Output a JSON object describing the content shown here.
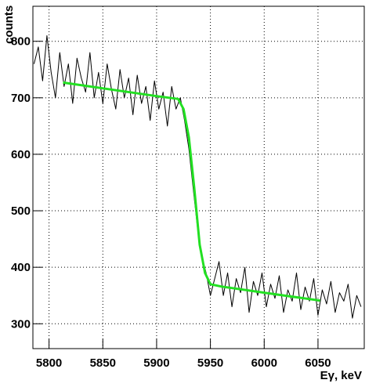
{
  "chart_data": {
    "type": "line",
    "x_label": "Eγ, keV",
    "y_label": "counts",
    "xlim": [
      5785,
      6093
    ],
    "ylim": [
      256,
      862
    ],
    "xticks": [
      5800,
      5850,
      5900,
      5950,
      6000,
      6050
    ],
    "yticks": [
      300,
      400,
      500,
      600,
      700,
      800
    ],
    "grid": true,
    "series": [
      {
        "color": "#000000",
        "x": [
          5786,
          5790,
          5794,
          5798,
          5802,
          5806,
          5810,
          5814,
          5818,
          5822,
          5826,
          5830,
          5834,
          5838,
          5842,
          5846,
          5850,
          5854,
          5858,
          5862,
          5866,
          5870,
          5874,
          5878,
          5882,
          5886,
          5890,
          5894,
          5898,
          5902,
          5906,
          5910,
          5914,
          5918,
          5922,
          5926,
          5930,
          5934,
          5938,
          5942,
          5946,
          5950,
          5954,
          5958,
          5962,
          5966,
          5970,
          5974,
          5978,
          5982,
          5986,
          5990,
          5994,
          5998,
          6002,
          6006,
          6010,
          6014,
          6018,
          6022,
          6026,
          6030,
          6034,
          6038,
          6042,
          6046,
          6050,
          6054,
          6058,
          6062,
          6066,
          6070,
          6074,
          6078,
          6082,
          6086,
          6090
        ],
        "values": [
          760,
          790,
          730,
          810,
          745,
          700,
          780,
          720,
          760,
          690,
          770,
          735,
          710,
          780,
          700,
          745,
          690,
          760,
          715,
          680,
          750,
          700,
          735,
          670,
          740,
          690,
          720,
          660,
          730,
          680,
          710,
          650,
          720,
          680,
          700,
          660,
          610,
          540,
          470,
          420,
          390,
          350,
          380,
          410,
          350,
          390,
          330,
          380,
          355,
          400,
          320,
          375,
          350,
          390,
          330,
          370,
          345,
          385,
          320,
          360,
          340,
          390,
          325,
          365,
          340,
          380,
          315,
          360,
          335,
          375,
          320,
          355,
          340,
          370,
          310,
          350,
          330
        ]
      },
      {
        "color": "#22e022",
        "x": [
          5813,
          5900,
          5920,
          5925,
          5930,
          5935,
          5940,
          5945,
          5950,
          5960,
          6000,
          6052
        ],
        "values": [
          727,
          703,
          698,
          680,
          630,
          540,
          440,
          390,
          370,
          366,
          355,
          341
        ]
      }
    ]
  }
}
